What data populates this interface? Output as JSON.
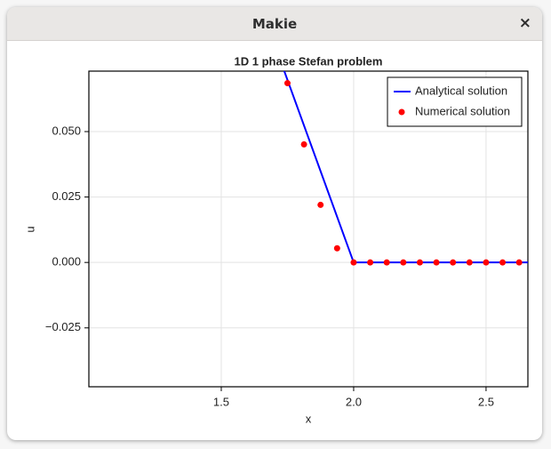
{
  "window": {
    "title": "Makie",
    "close": "×"
  },
  "chart_data": {
    "type": "line",
    "title": "1D 1 phase Stefan problem",
    "x_label": "x",
    "y_label": "u",
    "xlim": [
      1.0,
      2.658
    ],
    "ylim": [
      -0.0475,
      0.0731
    ],
    "xticks": [
      1.5,
      {
        "value": 2.0,
        "label": "2.0"
      },
      2.5
    ],
    "yticks": [
      {
        "value": 0.05,
        "label": "0.050"
      },
      {
        "value": 0.025,
        "label": "0.025"
      },
      {
        "value": 0,
        "label": "0.000"
      },
      {
        "value": -0.025,
        "label": "−0.025"
      }
    ],
    "grid": true,
    "legend": "top-right",
    "series": [
      {
        "name": "Analytical solution",
        "type": "line",
        "color": "#0000ff",
        "x": [
          1.7,
          2.0,
          2.658
        ],
        "values": [
          0.0837,
          0,
          0
        ]
      },
      {
        "name": "Numerical solution",
        "type": "scatter",
        "color": "#ff0000",
        "x": [
          1.75,
          1.8125,
          1.875,
          1.9375,
          2.0,
          2.0625,
          2.125,
          2.1875,
          2.25,
          2.3125,
          2.375,
          2.4375,
          2.5,
          2.5625,
          2.625
        ],
        "values": [
          0.0685,
          0.0451,
          0.022,
          0.0054,
          0,
          0,
          0,
          0,
          0,
          0,
          0,
          0,
          0,
          0,
          0
        ]
      }
    ]
  }
}
